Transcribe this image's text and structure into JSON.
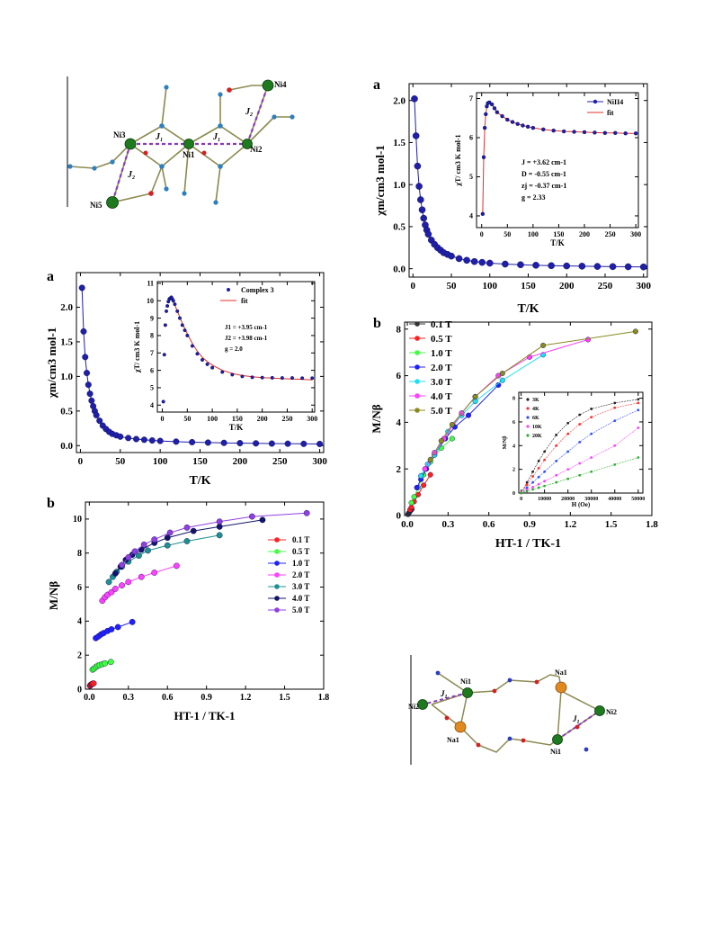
{
  "labels": {
    "ni4_struct": {
      "atoms": [
        "Ni4",
        "Ni3",
        "Ni1",
        "Ni2",
        "Ni5"
      ],
      "couplings": [
        "J",
        "J",
        "J",
        "J"
      ],
      "subs": [
        "1",
        "1",
        "2",
        "2"
      ]
    },
    "na_struct": {
      "atoms": [
        "Ni1",
        "Na1",
        "Ni2",
        "Na1",
        "Ni1",
        "Ni2"
      ],
      "couplings": [
        "J",
        "J"
      ],
      "subs": [
        "1",
        "1"
      ]
    }
  },
  "colors": {
    "series_main": "#1f1fa8",
    "fit": "#e0302a"
  },
  "chart_data": [
    {
      "id": "ni4_chi",
      "panel_letter": "a",
      "type": "scatter",
      "xlabel": "T/K",
      "ylabel": "χm/cm3 mol-1",
      "xlim": [
        -5,
        305
      ],
      "ylim": [
        -0.1,
        2.2
      ],
      "xticks": [
        "0",
        "50",
        "100",
        "150",
        "200",
        "250",
        "300"
      ],
      "yticks": [
        "0.0",
        "0.5",
        "1.0",
        "1.5",
        "2.0"
      ],
      "x": [
        2,
        4,
        6,
        8,
        10,
        12,
        14,
        16,
        18,
        20,
        24,
        28,
        32,
        36,
        40,
        45,
        50,
        60,
        70,
        80,
        90,
        100,
        120,
        140,
        160,
        180,
        200,
        220,
        240,
        260,
        280,
        300
      ],
      "y": [
        2.02,
        1.58,
        1.22,
        0.98,
        0.82,
        0.7,
        0.6,
        0.52,
        0.46,
        0.41,
        0.34,
        0.29,
        0.25,
        0.22,
        0.19,
        0.17,
        0.15,
        0.12,
        0.1,
        0.085,
        0.075,
        0.066,
        0.055,
        0.047,
        0.041,
        0.036,
        0.033,
        0.03,
        0.027,
        0.025,
        0.023,
        0.021
      ],
      "inset": {
        "xlabel": "T/K",
        "ylabel": "χT/ cm3 K mol-1",
        "xlim": [
          -10,
          305
        ],
        "ylim": [
          3.7,
          7.15
        ],
        "xticks": [
          "0",
          "50",
          "100",
          "150",
          "200",
          "250",
          "300"
        ],
        "yticks": [
          "4",
          "5",
          "6",
          "7"
        ],
        "series": [
          {
            "name": "NiII4",
            "x": [
              2,
              4,
              6,
              8,
              10,
              12,
              15,
              20,
              25,
              30,
              40,
              50,
              60,
              70,
              80,
              90,
              100,
              120,
              140,
              160,
              180,
              200,
              220,
              240,
              260,
              280,
              300
            ],
            "y": [
              4.05,
              5.5,
              6.25,
              6.6,
              6.8,
              6.88,
              6.9,
              6.85,
              6.75,
              6.65,
              6.55,
              6.46,
              6.4,
              6.35,
              6.31,
              6.28,
              6.25,
              6.21,
              6.18,
              6.16,
              6.15,
              6.14,
              6.13,
              6.12,
              6.12,
              6.11,
              6.11
            ]
          },
          {
            "name": "fit",
            "x": [
              2,
              4,
              6,
              8,
              10,
              12,
              15,
              20,
              25,
              30,
              40,
              50,
              60,
              70,
              80,
              90,
              100,
              120,
              140,
              160,
              180,
              200,
              220,
              240,
              260,
              280,
              300
            ],
            "y": [
              4.05,
              5.5,
              6.25,
              6.6,
              6.8,
              6.88,
              6.9,
              6.85,
              6.75,
              6.65,
              6.55,
              6.46,
              6.4,
              6.35,
              6.31,
              6.28,
              6.25,
              6.21,
              6.18,
              6.16,
              6.15,
              6.14,
              6.13,
              6.12,
              6.12,
              6.11,
              6.11
            ]
          }
        ],
        "annotations": [
          "J = +3.62 cm-1",
          "D = -0.55 cm-1",
          "zj = -0.37 cm-1",
          "g = 2.33"
        ]
      }
    },
    {
      "id": "c3_chi",
      "panel_letter": "a",
      "type": "scatter",
      "xlabel": "T/K",
      "ylabel": "χm/cm3 mol-1",
      "xlim": [
        -5,
        305
      ],
      "ylim": [
        -0.1,
        2.5
      ],
      "xticks": [
        "0",
        "50",
        "100",
        "150",
        "200",
        "250",
        "300"
      ],
      "yticks": [
        "0.0",
        "0.5",
        "1.0",
        "1.5",
        "2.0"
      ],
      "x": [
        2,
        4,
        6,
        8,
        10,
        12,
        14,
        16,
        18,
        20,
        24,
        28,
        32,
        36,
        40,
        45,
        50,
        60,
        70,
        80,
        90,
        100,
        120,
        140,
        160,
        180,
        200,
        220,
        240,
        260,
        280,
        300
      ],
      "y": [
        2.28,
        1.65,
        1.28,
        1.05,
        0.88,
        0.75,
        0.65,
        0.57,
        0.5,
        0.44,
        0.36,
        0.29,
        0.24,
        0.2,
        0.17,
        0.15,
        0.13,
        0.11,
        0.095,
        0.085,
        0.075,
        0.068,
        0.058,
        0.05,
        0.044,
        0.04,
        0.036,
        0.033,
        0.03,
        0.028,
        0.026,
        0.024
      ],
      "inset": {
        "xlabel": "T/K",
        "ylabel": "χT/ cm3 K mol-1",
        "xlim": [
          -10,
          305
        ],
        "ylim": [
          3.6,
          11.1
        ],
        "xticks": [
          "0",
          "50",
          "100",
          "150",
          "200",
          "250",
          "300"
        ],
        "yticks": [
          "4",
          "5",
          "6",
          "7",
          "8",
          "9",
          "10",
          "11"
        ],
        "series": [
          {
            "name": "Complex 3",
            "x": [
              2,
              4,
              6,
              8,
              10,
              12,
              14,
              16,
              18,
              20,
              22,
              25,
              30,
              35,
              40,
              45,
              50,
              60,
              70,
              80,
              90,
              100,
              120,
              140,
              160,
              180,
              200,
              220,
              240,
              260,
              280,
              300
            ],
            "y": [
              4.2,
              6.9,
              8.6,
              9.4,
              9.7,
              9.95,
              10.1,
              10.15,
              10.2,
              10.1,
              10.0,
              9.8,
              9.4,
              9.0,
              8.6,
              8.3,
              8.0,
              7.4,
              6.95,
              6.6,
              6.35,
              6.15,
              5.9,
              5.75,
              5.65,
              5.6,
              5.58,
              5.57,
              5.56,
              5.56,
              5.55,
              5.55
            ]
          },
          {
            "name": "fit",
            "x": [
              12,
              16,
              20,
              25,
              30,
              40,
              50,
              60,
              70,
              80,
              90,
              100,
              120,
              140,
              160,
              180,
              200,
              220,
              240,
              260,
              280,
              300
            ],
            "y": [
              10.1,
              10.2,
              10.05,
              9.75,
              9.4,
              8.7,
              8.1,
              7.55,
              7.1,
              6.75,
              6.5,
              6.3,
              6.0,
              5.82,
              5.7,
              5.63,
              5.58,
              5.55,
              5.52,
              5.5,
              5.48,
              5.45
            ]
          }
        ],
        "annotations": [
          "J1 = +3.95 cm-1",
          "J2 = +3.98 cm-1",
          "g = 2.0"
        ]
      }
    },
    {
      "id": "c3_mag",
      "panel_letter": "b",
      "type": "line",
      "xlabel": "HT-1 / TK-1",
      "ylabel": "M/Nβ",
      "xlim": [
        -0.03,
        1.8
      ],
      "ylim": [
        0,
        11
      ],
      "xticks": [
        "0.0",
        "0.3",
        "0.6",
        "0.9",
        "1.2",
        "1.5",
        "1.8"
      ],
      "yticks": [
        "0",
        "2",
        "4",
        "6",
        "8",
        "10"
      ],
      "series": [
        {
          "name": "0.1 T",
          "color": "#ff2020",
          "x": [
            0.005,
            0.01,
            0.015,
            0.02,
            0.025,
            0.033
          ],
          "y": [
            0.2,
            0.25,
            0.28,
            0.3,
            0.32,
            0.34
          ]
        },
        {
          "name": "0.5 T",
          "color": "#40ff40",
          "x": [
            0.025,
            0.035,
            0.05,
            0.065,
            0.08,
            0.1,
            0.12,
            0.165
          ],
          "y": [
            1.15,
            1.2,
            1.3,
            1.38,
            1.42,
            1.47,
            1.52,
            1.6
          ]
        },
        {
          "name": "1.0 T",
          "color": "#2020ff",
          "x": [
            0.05,
            0.07,
            0.09,
            0.11,
            0.14,
            0.17,
            0.22,
            0.33
          ],
          "y": [
            3.0,
            3.1,
            3.22,
            3.3,
            3.42,
            3.52,
            3.65,
            3.95
          ]
        },
        {
          "name": "2.0 T",
          "color": "#ff40ff",
          "x": [
            0.1,
            0.12,
            0.14,
            0.17,
            0.2,
            0.25,
            0.3,
            0.4,
            0.5,
            0.67
          ],
          "y": [
            5.2,
            5.4,
            5.55,
            5.7,
            5.9,
            6.1,
            6.3,
            6.6,
            6.85,
            7.25
          ]
        },
        {
          "name": "3.0 T",
          "color": "#1e9090",
          "x": [
            0.15,
            0.18,
            0.21,
            0.25,
            0.3,
            0.38,
            0.45,
            0.6,
            0.75,
            1.0
          ],
          "y": [
            6.3,
            6.6,
            6.9,
            7.2,
            7.5,
            7.85,
            8.15,
            8.45,
            8.7,
            9.05
          ]
        },
        {
          "name": "4.0 T",
          "color": "#14146a",
          "x": [
            0.2,
            0.24,
            0.28,
            0.33,
            0.4,
            0.5,
            0.6,
            0.8,
            1.0,
            1.33
          ],
          "y": [
            6.8,
            7.2,
            7.6,
            7.9,
            8.2,
            8.6,
            8.9,
            9.3,
            9.55,
            9.95
          ]
        },
        {
          "name": "5.0 T",
          "color": "#9040e0",
          "x": [
            0.25,
            0.3,
            0.35,
            0.42,
            0.5,
            0.62,
            0.75,
            1.0,
            1.25,
            1.67
          ],
          "y": [
            7.3,
            7.75,
            8.1,
            8.5,
            8.8,
            9.2,
            9.5,
            9.85,
            10.15,
            10.35
          ]
        }
      ]
    },
    {
      "id": "ni4_mag",
      "panel_letter": "b",
      "type": "line",
      "xlabel": "HT-1 /  TK-1",
      "ylabel": "M/Nβ",
      "xlim": [
        -0.02,
        1.8
      ],
      "ylim": [
        0,
        8.3
      ],
      "xticks": [
        "0.0",
        "0.3",
        "0.6",
        "0.9",
        "1.2",
        "1.5",
        "1.8"
      ],
      "yticks": [
        "0",
        "2",
        "4",
        "6",
        "8"
      ],
      "series": [
        {
          "name": "0.1 T",
          "color": "#333333",
          "x": [
            0.005,
            0.01,
            0.017,
            0.025,
            0.033
          ],
          "y": [
            0.05,
            0.1,
            0.15,
            0.22,
            0.27
          ]
        },
        {
          "name": "0.5 T",
          "color": "#ff2020",
          "x": [
            0.02,
            0.03,
            0.05,
            0.08,
            0.12,
            0.17
          ],
          "y": [
            0.25,
            0.35,
            0.6,
            0.9,
            1.3,
            1.75
          ]
        },
        {
          "name": "1.0 T",
          "color": "#40ff40",
          "x": [
            0.03,
            0.05,
            0.08,
            0.12,
            0.17,
            0.25,
            0.33
          ],
          "y": [
            0.55,
            0.8,
            1.2,
            1.75,
            2.3,
            2.9,
            3.3
          ]
        },
        {
          "name": "2.0 T",
          "color": "#2020ff",
          "x": [
            0.07,
            0.1,
            0.14,
            0.2,
            0.28,
            0.35,
            0.45,
            0.67
          ],
          "y": [
            1.2,
            1.55,
            2.0,
            2.6,
            3.3,
            3.8,
            4.3,
            5.6
          ]
        },
        {
          "name": "3.0 T",
          "color": "#20e0f0",
          "x": [
            0.1,
            0.15,
            0.2,
            0.3,
            0.4,
            0.5,
            0.7,
            1.0
          ],
          "y": [
            1.7,
            2.2,
            2.6,
            3.6,
            4.3,
            4.9,
            5.8,
            6.9
          ]
        },
        {
          "name": "4.0 T",
          "color": "#ff40ff",
          "x": [
            0.13,
            0.2,
            0.27,
            0.4,
            0.5,
            0.67,
            0.9,
            1.33
          ],
          "y": [
            2.0,
            2.7,
            3.3,
            4.4,
            5.1,
            6.0,
            6.8,
            7.55
          ]
        },
        {
          "name": "5.0 T",
          "color": "#8a8a20",
          "x": [
            0.17,
            0.25,
            0.33,
            0.5,
            0.7,
            1.0,
            1.68
          ],
          "y": [
            2.4,
            3.2,
            3.9,
            5.1,
            6.1,
            7.3,
            7.9
          ]
        }
      ],
      "inset": {
        "type": "line",
        "xlabel": "H (Oe)",
        "ylabel": "M/Nβ",
        "xlim": [
          -1000,
          52000
        ],
        "ylim": [
          0,
          8.5
        ],
        "xticks": [
          "0",
          "10000",
          "20000",
          "30000",
          "40000",
          "50000"
        ],
        "yticks": [
          "0",
          "2",
          "4",
          "6",
          "8"
        ],
        "series": [
          {
            "name": "3K",
            "color": "#222222",
            "x": [
              0,
              2500,
              5000,
              7500,
              10000,
              15000,
              20000,
              25000,
              30000,
              40000,
              50000
            ],
            "y": [
              0,
              0.9,
              1.8,
              2.7,
              3.5,
              4.9,
              5.9,
              6.6,
              7.1,
              7.6,
              7.9
            ]
          },
          {
            "name": "4K",
            "color": "#ff3030",
            "x": [
              0,
              2500,
              5000,
              7500,
              10000,
              15000,
              20000,
              25000,
              30000,
              40000,
              50000
            ],
            "y": [
              0,
              0.7,
              1.4,
              2.1,
              2.8,
              4.0,
              5.0,
              5.8,
              6.4,
              7.2,
              7.6
            ]
          },
          {
            "name": "6K",
            "color": "#3050ff",
            "x": [
              0,
              2500,
              5000,
              7500,
              10000,
              15000,
              20000,
              25000,
              30000,
              40000,
              50000
            ],
            "y": [
              0,
              0.45,
              0.9,
              1.35,
              1.8,
              2.7,
              3.5,
              4.3,
              5.0,
              6.1,
              7.0
            ]
          },
          {
            "name": "10K",
            "color": "#ff40ff",
            "x": [
              0,
              2500,
              5000,
              7500,
              10000,
              15000,
              20000,
              25000,
              30000,
              40000,
              50000
            ],
            "y": [
              0,
              0.25,
              0.5,
              0.75,
              1.0,
              1.5,
              2.0,
              2.5,
              3.0,
              4.0,
              5.5
            ]
          },
          {
            "name": "20K",
            "color": "#30b030",
            "x": [
              0,
              2500,
              5000,
              7500,
              10000,
              15000,
              20000,
              25000,
              30000,
              40000,
              50000
            ],
            "y": [
              0,
              0.15,
              0.3,
              0.45,
              0.6,
              0.9,
              1.2,
              1.5,
              1.8,
              2.4,
              3.0
            ]
          }
        ]
      }
    }
  ]
}
